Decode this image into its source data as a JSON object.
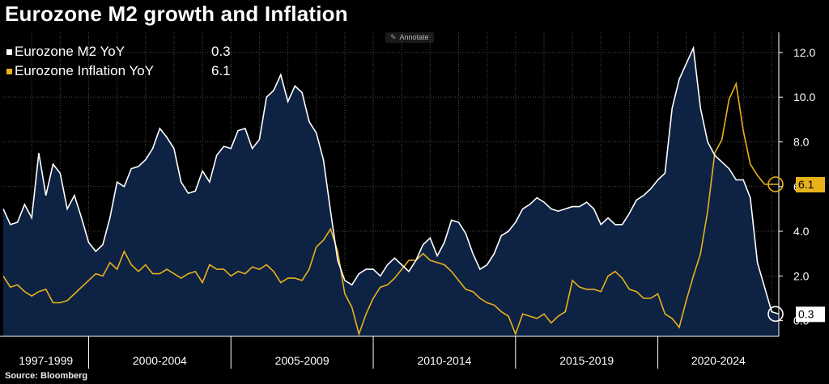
{
  "title": "Eurozone M2 growth and Inflation",
  "source": "Source: Bloomberg",
  "annotate_label": "Annotate",
  "annotate_icon": "pencil-icon",
  "colors": {
    "m2": "#ffffff",
    "m2_fill": "#0e2244",
    "inflation": "#e8b21b",
    "background": "#000000",
    "grid": "#4a4a4a"
  },
  "legend": [
    {
      "label": "Eurozone M2 YoY",
      "value": "0.3"
    },
    {
      "label": "Eurozone Inflation YoY",
      "value": "6.1"
    }
  ],
  "chart_data": {
    "type": "area",
    "title": "Eurozone M2 growth and Inflation",
    "x_range": [
      1997.0,
      2024.25
    ],
    "ylim": [
      -0.7,
      12.9
    ],
    "y_ticks": [
      "0.0",
      "2.0",
      "4.0",
      "6.0",
      "8.0",
      "10.0",
      "12.0"
    ],
    "period_labels": [
      "1997-1999",
      "2000-2004",
      "2005-2009",
      "2010-2014",
      "2015-2019",
      "2020-2024"
    ],
    "end_labels": {
      "m2": "0.3",
      "inflation": "6.1"
    },
    "series": [
      {
        "name": "Eurozone M2 YoY",
        "color": "#ffffff",
        "x": [
          1997.0,
          1997.25,
          1997.5,
          1997.75,
          1998.0,
          1998.25,
          1998.5,
          1998.75,
          1999.0,
          1999.25,
          1999.5,
          1999.75,
          2000.0,
          2000.25,
          2000.5,
          2000.75,
          2001.0,
          2001.25,
          2001.5,
          2001.75,
          2002.0,
          2002.25,
          2002.5,
          2002.75,
          2003.0,
          2003.25,
          2003.5,
          2003.75,
          2004.0,
          2004.25,
          2004.5,
          2004.75,
          2005.0,
          2005.25,
          2005.5,
          2005.75,
          2006.0,
          2006.25,
          2006.5,
          2006.75,
          2007.0,
          2007.25,
          2007.5,
          2007.75,
          2008.0,
          2008.25,
          2008.5,
          2008.75,
          2009.0,
          2009.25,
          2009.5,
          2009.75,
          2010.0,
          2010.25,
          2010.5,
          2010.75,
          2011.0,
          2011.25,
          2011.5,
          2011.75,
          2012.0,
          2012.25,
          2012.5,
          2012.75,
          2013.0,
          2013.25,
          2013.5,
          2013.75,
          2014.0,
          2014.25,
          2014.5,
          2014.75,
          2015.0,
          2015.25,
          2015.5,
          2015.75,
          2016.0,
          2016.25,
          2016.5,
          2016.75,
          2017.0,
          2017.25,
          2017.5,
          2017.75,
          2018.0,
          2018.25,
          2018.5,
          2018.75,
          2019.0,
          2019.25,
          2019.5,
          2019.75,
          2020.0,
          2020.25,
          2020.5,
          2020.75,
          2021.0,
          2021.25,
          2021.5,
          2021.75,
          2022.0,
          2022.25,
          2022.5,
          2022.75,
          2023.0,
          2023.25,
          2023.5,
          2023.75,
          2024.0,
          2024.25
        ],
        "values": [
          5.0,
          4.3,
          4.4,
          5.2,
          4.6,
          7.5,
          5.6,
          7.0,
          6.6,
          5.0,
          5.6,
          4.6,
          3.5,
          3.1,
          3.4,
          4.6,
          6.2,
          6.0,
          6.8,
          6.9,
          7.2,
          7.7,
          8.6,
          8.2,
          7.7,
          6.2,
          5.7,
          5.8,
          6.7,
          6.2,
          7.4,
          7.8,
          7.7,
          8.5,
          8.6,
          7.7,
          8.1,
          10.0,
          10.3,
          11.0,
          9.8,
          10.5,
          10.2,
          8.9,
          8.4,
          7.2,
          4.9,
          2.7,
          1.8,
          1.6,
          2.1,
          2.3,
          2.3,
          2.0,
          2.5,
          2.8,
          2.5,
          2.2,
          2.7,
          3.4,
          3.7,
          2.9,
          3.5,
          4.5,
          4.4,
          3.9,
          3.0,
          2.3,
          2.5,
          3.0,
          3.8,
          4.0,
          4.4,
          5.0,
          5.2,
          5.5,
          5.3,
          5.0,
          4.9,
          5.0,
          5.1,
          5.1,
          5.3,
          5.0,
          4.3,
          4.6,
          4.3,
          4.3,
          4.8,
          5.4,
          5.6,
          5.9,
          6.3,
          6.6,
          9.5,
          10.8,
          11.5,
          12.2,
          9.5,
          8.0,
          7.4,
          7.1,
          6.8,
          6.3,
          6.3,
          5.5,
          2.6,
          1.5,
          0.4,
          0.3
        ]
      },
      {
        "name": "Eurozone Inflation YoY",
        "color": "#e8b21b",
        "x": [
          1997.0,
          1997.25,
          1997.5,
          1997.75,
          1998.0,
          1998.25,
          1998.5,
          1998.75,
          1999.0,
          1999.25,
          1999.5,
          1999.75,
          2000.0,
          2000.25,
          2000.5,
          2000.75,
          2001.0,
          2001.25,
          2001.5,
          2001.75,
          2002.0,
          2002.25,
          2002.5,
          2002.75,
          2003.0,
          2003.25,
          2003.5,
          2003.75,
          2004.0,
          2004.25,
          2004.5,
          2004.75,
          2005.0,
          2005.25,
          2005.5,
          2005.75,
          2006.0,
          2006.25,
          2006.5,
          2006.75,
          2007.0,
          2007.25,
          2007.5,
          2007.75,
          2008.0,
          2008.25,
          2008.5,
          2008.75,
          2009.0,
          2009.25,
          2009.5,
          2009.75,
          2010.0,
          2010.25,
          2010.5,
          2010.75,
          2011.0,
          2011.25,
          2011.5,
          2011.75,
          2012.0,
          2012.25,
          2012.5,
          2012.75,
          2013.0,
          2013.25,
          2013.5,
          2013.75,
          2014.0,
          2014.25,
          2014.5,
          2014.75,
          2015.0,
          2015.25,
          2015.5,
          2015.75,
          2016.0,
          2016.25,
          2016.5,
          2016.75,
          2017.0,
          2017.25,
          2017.5,
          2017.75,
          2018.0,
          2018.25,
          2018.5,
          2018.75,
          2019.0,
          2019.25,
          2019.5,
          2019.75,
          2020.0,
          2020.25,
          2020.5,
          2020.75,
          2021.0,
          2021.25,
          2021.5,
          2021.75,
          2022.0,
          2022.25,
          2022.5,
          2022.75,
          2023.0,
          2023.25,
          2023.5,
          2023.75,
          2024.0,
          2024.25
        ],
        "values": [
          2.0,
          1.5,
          1.6,
          1.3,
          1.1,
          1.3,
          1.4,
          0.8,
          0.8,
          0.9,
          1.2,
          1.5,
          1.8,
          2.1,
          2.0,
          2.6,
          2.3,
          3.1,
          2.5,
          2.2,
          2.5,
          2.1,
          2.1,
          2.3,
          2.1,
          1.9,
          2.1,
          2.2,
          1.7,
          2.5,
          2.3,
          2.3,
          2.0,
          2.2,
          2.1,
          2.4,
          2.3,
          2.5,
          2.2,
          1.7,
          1.9,
          1.9,
          1.8,
          2.3,
          3.3,
          3.6,
          4.1,
          3.1,
          1.2,
          0.6,
          -0.6,
          0.3,
          1.0,
          1.5,
          1.6,
          1.9,
          2.3,
          2.7,
          2.7,
          3.0,
          2.7,
          2.6,
          2.5,
          2.2,
          1.8,
          1.4,
          1.3,
          1.0,
          0.8,
          0.7,
          0.4,
          0.2,
          -0.6,
          0.3,
          0.2,
          0.1,
          0.3,
          -0.1,
          0.2,
          0.4,
          1.8,
          1.5,
          1.4,
          1.4,
          1.3,
          2.0,
          2.2,
          1.9,
          1.4,
          1.3,
          1.0,
          1.0,
          1.2,
          0.3,
          0.1,
          -0.3,
          0.9,
          2.0,
          3.0,
          4.9,
          7.5,
          8.1,
          9.9,
          10.6,
          8.5,
          7.0,
          6.5,
          6.1,
          6.1,
          6.1
        ]
      }
    ]
  }
}
